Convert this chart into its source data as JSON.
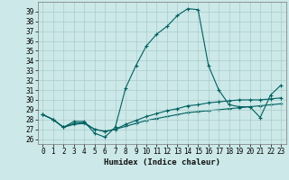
{
  "xlabel": "Humidex (Indice chaleur)",
  "x_ticks": [
    0,
    1,
    2,
    3,
    4,
    5,
    6,
    7,
    8,
    9,
    10,
    11,
    12,
    13,
    14,
    15,
    16,
    17,
    18,
    19,
    20,
    21,
    22,
    23
  ],
  "xlim": [
    -0.5,
    23.5
  ],
  "ylim": [
    25.5,
    40.0
  ],
  "y_ticks": [
    26,
    27,
    28,
    29,
    30,
    31,
    32,
    33,
    34,
    35,
    36,
    37,
    38,
    39
  ],
  "bg_color": "#cce8e8",
  "grid_color": "#aacccc",
  "line_color": "#006060",
  "line1_y": [
    28.5,
    28.0,
    27.2,
    27.8,
    27.8,
    26.6,
    26.2,
    27.2,
    31.2,
    33.5,
    35.5,
    36.7,
    37.5,
    38.6,
    39.3,
    39.2,
    33.5,
    31.0,
    29.5,
    29.3,
    29.3,
    28.2,
    30.5,
    31.5
  ],
  "line2_y": [
    28.5,
    28.0,
    27.2,
    27.6,
    27.7,
    27.0,
    26.8,
    27.0,
    27.5,
    27.9,
    28.3,
    28.6,
    28.9,
    29.1,
    29.4,
    29.5,
    29.7,
    29.8,
    29.9,
    30.0,
    30.0,
    30.0,
    30.1,
    30.2
  ],
  "line3_y": [
    28.5,
    28.0,
    27.2,
    27.5,
    27.6,
    27.0,
    26.8,
    27.0,
    27.3,
    27.6,
    27.9,
    28.1,
    28.3,
    28.5,
    28.7,
    28.8,
    28.9,
    29.0,
    29.1,
    29.2,
    29.3,
    29.4,
    29.5,
    29.6
  ],
  "tick_fontsize": 5.5,
  "xlabel_fontsize": 6.5
}
